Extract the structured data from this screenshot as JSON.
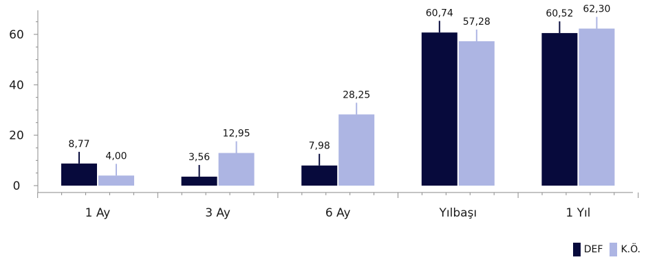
{
  "chart_data": {
    "type": "bar",
    "categories": [
      "1 Ay",
      "3 Ay",
      "6 Ay",
      "Yılbaşı",
      "1 Yıl"
    ],
    "series": [
      {
        "name": "DEF",
        "color": "#070a3c",
        "values": [
          8.77,
          3.56,
          7.98,
          60.74,
          60.52
        ],
        "labels": [
          "8,77",
          "3,56",
          "7,98",
          "60,74",
          "60,52"
        ]
      },
      {
        "name": "K.Ö.",
        "color": "#adb5e3",
        "values": [
          4.0,
          12.95,
          28.25,
          57.28,
          62.3
        ],
        "labels": [
          "4,00",
          "12,95",
          "28,25",
          "57,28",
          "62,30"
        ]
      }
    ],
    "y_ticks": [
      "0",
      "20",
      "40",
      "60"
    ],
    "ylim": [
      0,
      70
    ],
    "grid": false,
    "legend": "bottom-right"
  }
}
